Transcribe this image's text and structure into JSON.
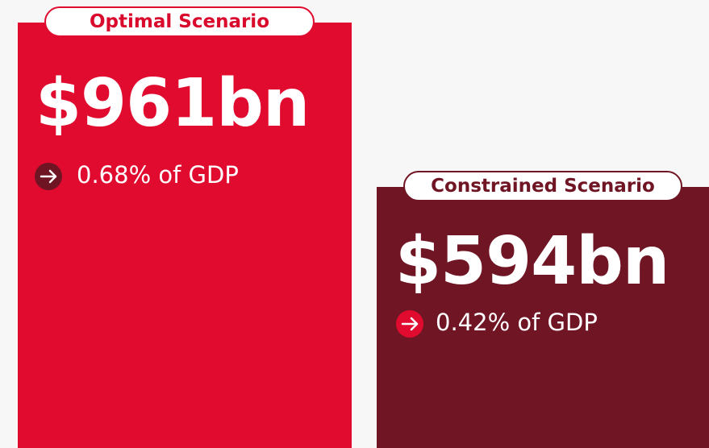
{
  "scenarios": [
    {
      "label": "Optimal Scenario",
      "amount": "$961bn",
      "share": "0.68% of GDP"
    },
    {
      "label": "Constrained Scenario",
      "amount": "$594bn",
      "share": "0.42% of GDP"
    }
  ]
}
